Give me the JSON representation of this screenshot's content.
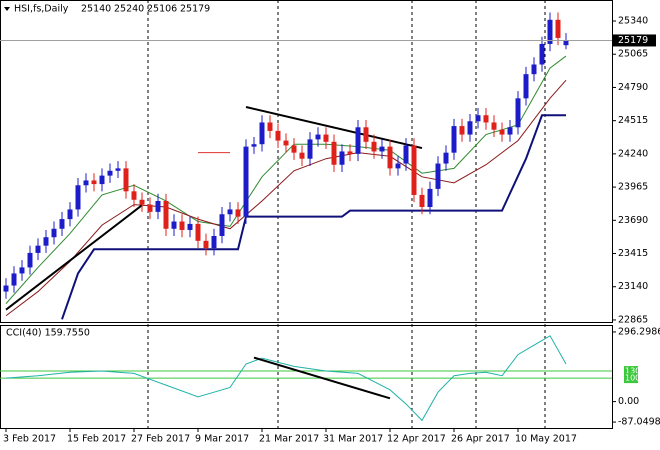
{
  "chart_data": [
    {
      "type": "candlestick",
      "title": "HSI,fs,Daily",
      "up_color": "#1c1cc8",
      "down_color": "#e0201b",
      "open": [
        23100,
        23150,
        23250,
        23300,
        23420,
        23480,
        23550,
        23620,
        23700,
        23780,
        23980,
        24020,
        23990,
        24060,
        24100,
        24120,
        23930,
        23860,
        23820,
        23760,
        23850,
        23620,
        23680,
        23610,
        23660,
        23520,
        23460,
        23560,
        23740,
        23780,
        23720,
        24300,
        24320,
        24500,
        24430,
        24350,
        24310,
        24250,
        24200,
        24360,
        24400,
        24340,
        24150,
        24260,
        24240,
        24460,
        24340,
        24260,
        24300,
        24120,
        24160,
        24310,
        23900,
        23800,
        23950,
        24160,
        24250,
        24470,
        24400,
        24510,
        24560,
        24500,
        24440,
        24400,
        24460,
        24700,
        24900,
        24980,
        25150,
        25350,
        25140
      ],
      "high": [
        23210,
        23310,
        23360,
        23480,
        23540,
        23610,
        23680,
        23760,
        23840,
        24040,
        24080,
        24080,
        24120,
        24160,
        24180,
        24180,
        23990,
        23920,
        23880,
        23910,
        23910,
        23740,
        23740,
        23720,
        23720,
        23580,
        23620,
        23800,
        23840,
        23840,
        24360,
        24380,
        24560,
        24560,
        24490,
        24410,
        24370,
        24310,
        24420,
        24460,
        24460,
        24400,
        24320,
        24320,
        24520,
        24520,
        24400,
        24360,
        24360,
        24220,
        24370,
        24370,
        23960,
        24010,
        24220,
        24310,
        24530,
        24530,
        24570,
        24620,
        24620,
        24560,
        24500,
        24520,
        24760,
        24960,
        25040,
        25210,
        25410,
        25410,
        25240
      ],
      "low": [
        23040,
        23090,
        23190,
        23240,
        23360,
        23420,
        23490,
        23560,
        23640,
        23720,
        23920,
        23930,
        23930,
        24000,
        24040,
        23870,
        23800,
        23760,
        23700,
        23700,
        23560,
        23560,
        23550,
        23550,
        23460,
        23400,
        23400,
        23500,
        23680,
        23660,
        23660,
        24240,
        24260,
        24370,
        24290,
        24250,
        24190,
        24140,
        24140,
        24300,
        24280,
        24090,
        24090,
        24180,
        24180,
        24280,
        24200,
        24200,
        24060,
        24060,
        24100,
        23840,
        23740,
        23740,
        23890,
        24100,
        24190,
        24340,
        24340,
        24450,
        24440,
        24380,
        24340,
        24340,
        24400,
        24640,
        24840,
        24920,
        25090,
        25140,
        25106
      ],
      "close": [
        23150,
        23250,
        23300,
        23420,
        23480,
        23550,
        23620,
        23700,
        23780,
        23980,
        24020,
        23990,
        24060,
        24100,
        24120,
        23930,
        23860,
        23820,
        23760,
        23850,
        23620,
        23680,
        23610,
        23660,
        23520,
        23460,
        23560,
        23740,
        23780,
        23720,
        24300,
        24320,
        24500,
        24430,
        24350,
        24310,
        24250,
        24200,
        24360,
        24400,
        24340,
        24150,
        24260,
        24240,
        24460,
        24340,
        24260,
        24300,
        24120,
        24160,
        24310,
        23900,
        23800,
        23950,
        24160,
        24250,
        24470,
        24400,
        24510,
        24560,
        24500,
        24440,
        24400,
        24460,
        24700,
        24900,
        24980,
        25150,
        25350,
        25200,
        25179
      ],
      "series": [
        {
          "color": "#2e8b2e",
          "x": [
            0,
            4,
            8,
            12,
            16,
            20,
            24,
            28,
            32,
            36,
            40,
            44,
            48,
            52,
            56,
            60,
            64,
            68,
            70
          ],
          "values": [
            23000,
            23300,
            23580,
            23900,
            23980,
            23850,
            23680,
            23640,
            24050,
            24320,
            24320,
            24300,
            24270,
            24080,
            24120,
            24400,
            24480,
            24950,
            25050
          ]
        },
        {
          "color": "#8b1a1a",
          "x": [
            0,
            4,
            8,
            12,
            16,
            20,
            24,
            28,
            32,
            36,
            40,
            44,
            48,
            52,
            56,
            60,
            64,
            68,
            70
          ],
          "values": [
            22900,
            23100,
            23350,
            23650,
            23820,
            23800,
            23700,
            23620,
            23850,
            24100,
            24200,
            24250,
            24220,
            24050,
            24000,
            24150,
            24350,
            24700,
            24850
          ]
        },
        {
          "color": "#10107a",
          "x": [
            7,
            9,
            11,
            29,
            30,
            42,
            43,
            62,
            65,
            67,
            70
          ],
          "values": [
            22870,
            23250,
            23450,
            23450,
            23720,
            23720,
            23770,
            23770,
            24200,
            24560,
            24560
          ]
        },
        {
          "color": "#e03030",
          "x": [
            24,
            28
          ],
          "values": [
            24250,
            24250
          ]
        },
        {
          "color": "#000000",
          "x": [
            0,
            17
          ],
          "values": [
            22950,
            23815
          ]
        },
        {
          "color": "#000000",
          "x": [
            30,
            52
          ],
          "values": [
            24628,
            24288
          ]
        }
      ],
      "ylim": [
        22848,
        25514
      ],
      "yticks": [
        25340,
        25065,
        24790,
        24515,
        24240,
        23965,
        23690,
        23415,
        23140,
        22865
      ],
      "xticks": [
        {
          "value": 0,
          "label": "3 Feb 2017"
        },
        {
          "value": 8,
          "label": "15 Feb 2017"
        },
        {
          "value": 16,
          "label": "27 Feb 2017"
        },
        {
          "value": 24,
          "label": "9 Mar 2017"
        },
        {
          "value": 32,
          "label": "21 Mar 2017"
        },
        {
          "value": 40,
          "label": "31 Mar 2017"
        },
        {
          "value": 48,
          "label": "12 Apr 2017"
        },
        {
          "value": 56,
          "label": "26 Apr 2017"
        },
        {
          "value": 64,
          "label": "10 May 2017"
        }
      ]
    },
    {
      "type": "line",
      "title": "CCI(40) 159.7550",
      "series": [
        {
          "color": "#20b2aa",
          "x": [
            0,
            4,
            8,
            12,
            16,
            20,
            24,
            26,
            28,
            30,
            32,
            36,
            40,
            44,
            48,
            50,
            52,
            54,
            56,
            58,
            60,
            62,
            64,
            66,
            68,
            70
          ],
          "values": [
            100,
            110,
            125,
            130,
            120,
            70,
            20,
            40,
            60,
            160,
            185,
            150,
            130,
            120,
            50,
            -10,
            -80,
            40,
            110,
            120,
            125,
            110,
            200,
            240,
            280,
            159.755
          ]
        },
        {
          "color": "#000000",
          "x": [
            31,
            48
          ],
          "values": [
            187,
            14
          ]
        }
      ],
      "levels": [
        130,
        100
      ],
      "level_color": "#3cc83c",
      "ylim": [
        -112.3,
        321.6
      ],
      "yticks": [
        296.2986,
        {
          "value": 0,
          "label": "0.00"
        },
        -87.0498
      ]
    }
  ]
}
